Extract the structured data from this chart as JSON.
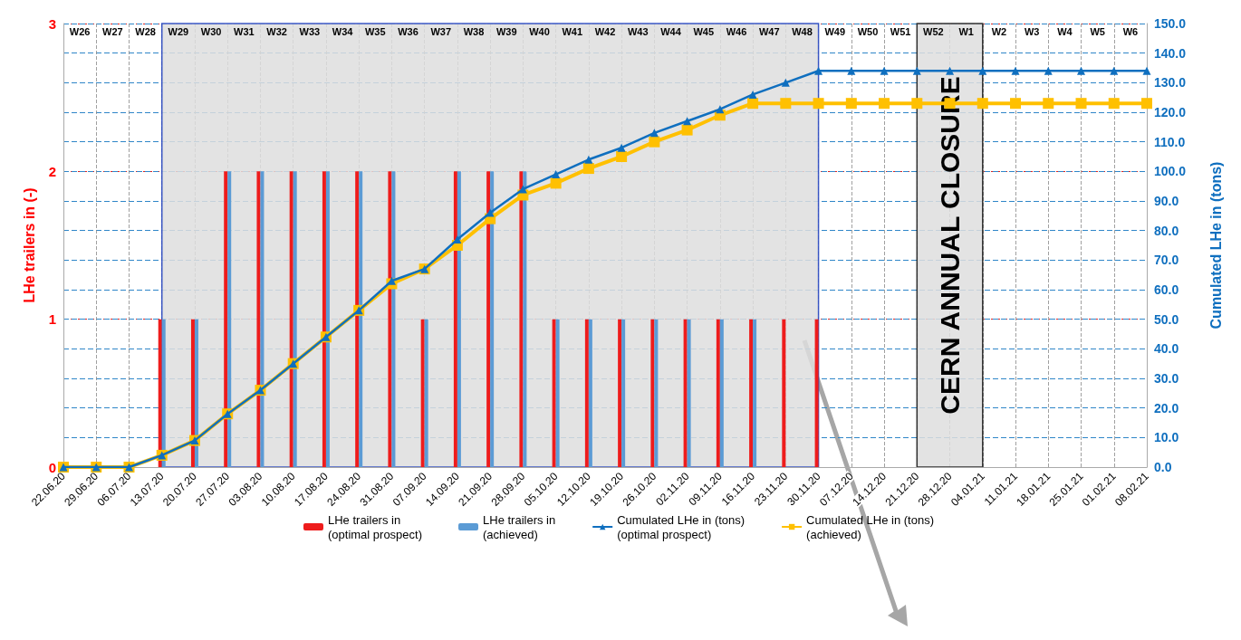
{
  "chart_data": {
    "type": "bar",
    "ylabel": "LHe trailers in (-)",
    "y2label": "Cumulated LHe in (tons)",
    "categories": [
      "22.06.20",
      "29.06.20",
      "06.07.20",
      "13.07.20",
      "20.07.20",
      "27.07.20",
      "03.08.20",
      "10.08.20",
      "17.08.20",
      "24.08.20",
      "31.08.20",
      "07.09.20",
      "14.09.20",
      "21.09.20",
      "28.09.20",
      "05.10.20",
      "12.10.20",
      "19.10.20",
      "26.10.20",
      "02.11.20",
      "09.11.20",
      "16.11.20",
      "23.11.20",
      "30.11.20",
      "07.12.20",
      "14.12.20",
      "21.12.20",
      "28.12.20",
      "04.01.21",
      "11.01.21",
      "18.01.21",
      "25.01.21",
      "01.02.21",
      "08.02.21"
    ],
    "series": [
      {
        "name": "LHe trailers in (optimal prospect)",
        "color": "#ee1c1c",
        "values": [
          0,
          0,
          0,
          1,
          1,
          2,
          2,
          2,
          2,
          2,
          2,
          1,
          2,
          2,
          2,
          1,
          1,
          1,
          1,
          1,
          1,
          1,
          1,
          1,
          0,
          0,
          0,
          0,
          0,
          0,
          0,
          0,
          0,
          0
        ]
      },
      {
        "name": "LHe trailers in (achieved)",
        "color": "#5b9bd5",
        "values": [
          0,
          0,
          0,
          1,
          1,
          2,
          2,
          2,
          2,
          2,
          2,
          1,
          2,
          2,
          2,
          1,
          1,
          1,
          1,
          1,
          1,
          1,
          0,
          0,
          0,
          0,
          0,
          0,
          0,
          0,
          0,
          0,
          0,
          0
        ]
      },
      {
        "name": "Cumulated LHe in (tons) (optimal prospect)",
        "type": "line",
        "axis": "y2",
        "marker": "triangle",
        "color": "#0f6fbf",
        "values": [
          0,
          0,
          0,
          4,
          9,
          18,
          26,
          35,
          44,
          53,
          63,
          67,
          77,
          86,
          94,
          99,
          104,
          108,
          113,
          117,
          121,
          126,
          130,
          134,
          134,
          134,
          134,
          134,
          134,
          134,
          134,
          134,
          134,
          134
        ]
      },
      {
        "name": "Cumulated LHe in (tons) (achieved)",
        "type": "line",
        "axis": "y2",
        "marker": "square",
        "color": "#ffc000",
        "values": [
          0,
          0,
          0,
          4,
          9,
          18,
          26,
          35,
          44,
          53,
          62,
          67,
          75,
          84,
          92,
          96,
          101,
          105,
          110,
          114,
          119,
          123,
          123,
          123,
          123,
          123,
          123,
          123,
          123,
          123,
          123,
          123,
          123,
          123
        ]
      }
    ],
    "ylim": [
      0,
      3
    ],
    "yticks": [
      0,
      1,
      2,
      3
    ],
    "y2lim": [
      0,
      150
    ],
    "y2ticks": [
      {
        "value": 0,
        "label": "0.0"
      },
      {
        "value": 10,
        "label": "10.0"
      },
      {
        "value": 20,
        "label": "20.0"
      },
      {
        "value": 30,
        "label": "30.0"
      },
      {
        "value": 40,
        "label": "40.0"
      },
      {
        "value": 50,
        "label": "50.0"
      },
      {
        "value": 60,
        "label": "60.0"
      },
      {
        "value": 70,
        "label": "70.0"
      },
      {
        "value": 80,
        "label": "80.0"
      },
      {
        "value": 90,
        "label": "90.0"
      },
      {
        "value": 100,
        "label": "100.0"
      },
      {
        "value": 110,
        "label": "110.0"
      },
      {
        "value": 120,
        "label": "120.0"
      },
      {
        "value": 130,
        "label": "130.0"
      },
      {
        "value": 140,
        "label": "140.0"
      },
      {
        "value": 150,
        "label": "150.0"
      }
    ],
    "bands": [
      {
        "axis": "x",
        "from": "13.07.20",
        "to": "30.11.20",
        "color": "#dedede"
      },
      {
        "axis": "x",
        "from": "21.12.20",
        "to": "04.01.21",
        "label": "CERN ANNUAL CLOSURE",
        "color": "#dedede"
      }
    ],
    "annotations": [
      "W26",
      "W27",
      "W28",
      "W29",
      "W30",
      "W31",
      "W32",
      "W33",
      "W34",
      "W35",
      "W36",
      "W37",
      "W38",
      "W39",
      "W40",
      "W41",
      "W42",
      "W43",
      "W44",
      "W45",
      "W46",
      "W47",
      "W48",
      "W49",
      "W50",
      "W51",
      "W52",
      "W1",
      "W2",
      "W3",
      "W4",
      "W5",
      "W6"
    ],
    "grid": true,
    "legend": "bottom"
  }
}
